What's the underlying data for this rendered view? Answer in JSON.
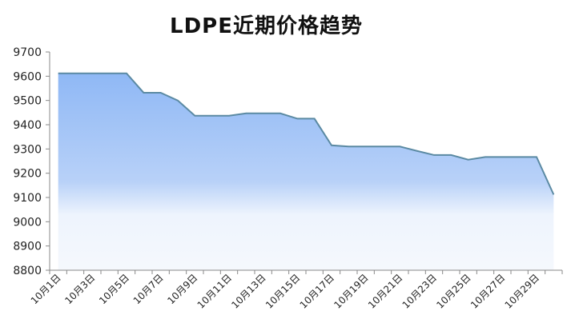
{
  "chart_data": {
    "type": "area",
    "title": "LDPE近期价格趋势",
    "xlabel": "",
    "ylabel": "",
    "ylim": [
      8800,
      9700
    ],
    "yticks": [
      8800,
      8900,
      9000,
      9100,
      9200,
      9300,
      9400,
      9500,
      9600,
      9700
    ],
    "x": [
      "10月1日",
      "10月2日",
      "10月3日",
      "10月4日",
      "10月5日",
      "10月6日",
      "10月7日",
      "10月8日",
      "10月9日",
      "10月10日",
      "10月11日",
      "10月12日",
      "10月13日",
      "10月14日",
      "10月15日",
      "10月16日",
      "10月17日",
      "10月18日",
      "10月19日",
      "10月20日",
      "10月21日",
      "10月22日",
      "10月23日",
      "10月24日",
      "10月25日",
      "10月26日",
      "10月27日",
      "10月28日",
      "10月29日",
      "10月30日"
    ],
    "xtick_labels": [
      "10月1日",
      "10月3日",
      "10月5日",
      "10月7日",
      "10月9日",
      "10月11日",
      "10月13日",
      "10月15日",
      "10月17日",
      "10月19日",
      "10月21日",
      "10月23日",
      "10月25日",
      "10月27日",
      "10月29日"
    ],
    "values": [
      9612,
      9612,
      9612,
      9612,
      9612,
      9532,
      9532,
      9500,
      9437,
      9437,
      9437,
      9447,
      9447,
      9447,
      9425,
      9425,
      9315,
      9310,
      9310,
      9310,
      9310,
      9292,
      9275,
      9275,
      9256,
      9267,
      9267,
      9267,
      9267,
      9112
    ],
    "grid": false,
    "colors": {
      "line": "#5b8aa3",
      "fill_top": "#8fb8f5",
      "fill_bottom": "#f5f8fd",
      "axis": "#888888"
    }
  }
}
